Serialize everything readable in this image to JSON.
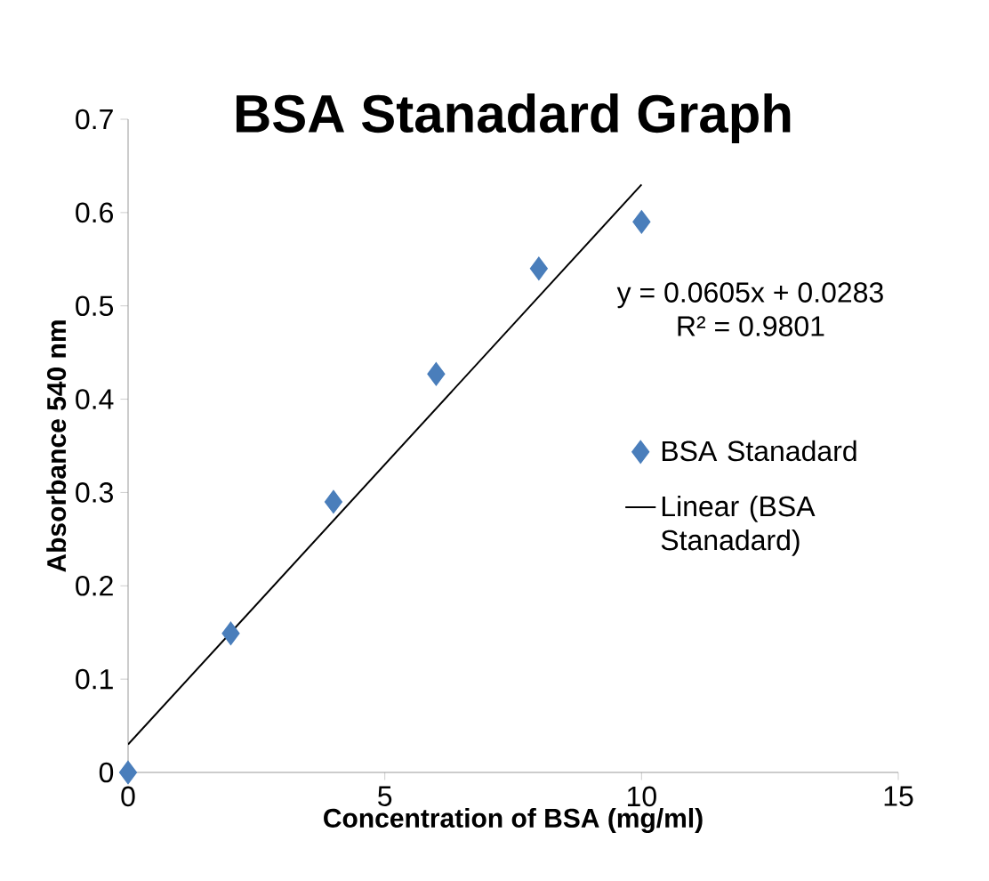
{
  "chart_data": {
    "type": "scatter",
    "title": "BSA Stanadard Graph",
    "xlabel": "Concentration of BSA (mg/ml)",
    "ylabel": "Absorbance 540 nm",
    "x": [
      0,
      2,
      4,
      6,
      8,
      10
    ],
    "series": [
      {
        "name": "BSA Stanadard",
        "color": "#4a7ebb",
        "marker": "diamond",
        "values": [
          0,
          0.149,
          0.29,
          0.427,
          0.54,
          0.59
        ]
      },
      {
        "name": "Linear (BSA Stanadard)",
        "type": "line",
        "color": "#000000",
        "marker": "none",
        "x": [
          0,
          10
        ],
        "values": [
          0.03,
          0.63
        ]
      }
    ],
    "annotations": [
      "y = 0.0605x + 0.0283",
      "R² = 0.9801"
    ],
    "xlim": [
      0,
      15
    ],
    "xticks": [
      0,
      5,
      10,
      15
    ],
    "ylim": [
      0,
      0.7
    ],
    "yticks": [
      0,
      0.1,
      0.2,
      0.3,
      0.4,
      0.5,
      0.6,
      0.7
    ],
    "grid": false,
    "legend": "right"
  }
}
